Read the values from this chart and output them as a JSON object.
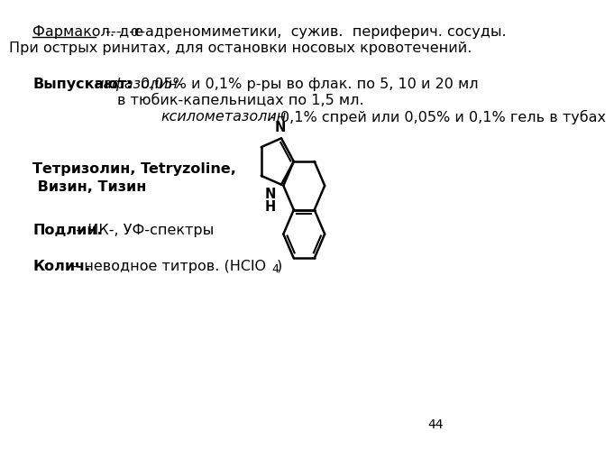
{
  "bg_color": "#ffffff",
  "page_number": "44",
  "line1_underline": "Фармакол. д-е",
  "line1_rest": "  ---  α-адреномиметики,  сужив.  периферич. сосуды.",
  "line2": "При острых ринитах, для остановки носовых кровотечений.",
  "vipusk_bold": "Выпускают:",
  "vipusk_italic": "нафазолин-",
  "vipusk_rest": " 0,05% и 0,1% р-ры во флак. по 5, 10 и 20 мл",
  "vipusk_line2": "в тюбик-капельницах по 1,5 мл.",
  "vipusk_line3_italic": "ксилометазолин",
  "vipusk_line3_rest": " - 0,1% спрей или 0,05% и 0,1% гель в тубах",
  "triz_line1": "Тетризолин, Tetryzoline,",
  "triz_line2": " Визин, Тизин",
  "podlin_bold": "Подлин.",
  "podlin_rest": " – ИК-, УФ-спектры",
  "kolich_bold": "Колич.",
  "kolich_rest": " – неводное титров. (HClO",
  "kolich_sub": "4",
  "kolich_end": ")",
  "fs": 11.5,
  "lw": 1.8
}
